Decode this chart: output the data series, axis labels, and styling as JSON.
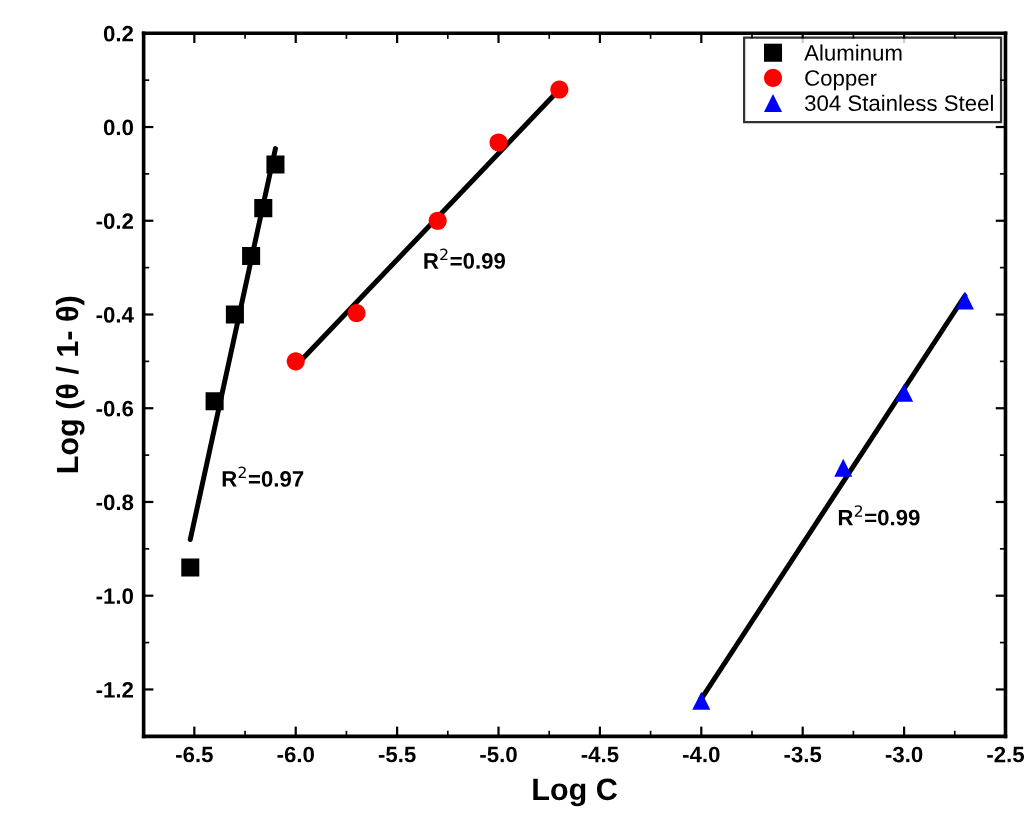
{
  "chart_data": {
    "type": "scatter",
    "xlabel": "Log C",
    "ylabel": "Log (θ / 1- θ)",
    "xlim": [
      -6.75,
      -2.5
    ],
    "ylim": [
      -1.3,
      0.2
    ],
    "xticks": [
      -6.5,
      {
        "value": -6,
        "label": "-6.0"
      },
      -5.5,
      {
        "value": -5,
        "label": "-5.0"
      },
      -4.5,
      {
        "value": -4,
        "label": "-4.0"
      },
      -3.5,
      {
        "value": -3,
        "label": "-3.0"
      },
      -2.5
    ],
    "yticks": [
      -1.2,
      {
        "value": -1,
        "label": "-1.0"
      },
      -0.8,
      -0.6,
      -0.4,
      -0.2,
      {
        "value": 0,
        "label": "0.0"
      },
      0.2
    ],
    "legend": "top right",
    "grid": false,
    "series": [
      {
        "name": "Aluminum",
        "color": "#000000",
        "marker": "square",
        "x": [
          -6.52,
          -6.4,
          -6.3,
          -6.22,
          -6.16,
          -6.1
        ],
        "values": [
          -0.94,
          -0.585,
          -0.4,
          -0.275,
          -0.173,
          -0.08
        ]
      },
      {
        "name": "Copper",
        "color": "#ff0000",
        "marker": "circle",
        "x": [
          -6.0,
          -5.7,
          -5.3,
          -5.0,
          -4.7
        ],
        "values": [
          -0.5,
          -0.397,
          -0.2,
          -0.033,
          0.08
        ]
      },
      {
        "name": "304 Stainless Steel",
        "color": "#0000ff",
        "marker": "triangle",
        "x": [
          -4.0,
          -3.3,
          -3.0,
          -2.7
        ],
        "values": [
          -1.224,
          -0.727,
          -0.567,
          -0.37
        ]
      },
      {
        "type": "line",
        "color": "#000000",
        "marker": "none",
        "x": [
          -6.52,
          -6.1
        ],
        "values": [
          -0.88,
          -0.046
        ]
      },
      {
        "type": "line",
        "color": "#000000",
        "marker": "none",
        "x": [
          -6.0,
          -4.7
        ],
        "values": [
          -0.51,
          0.08
        ]
      },
      {
        "type": "line",
        "color": "#000000",
        "marker": "none",
        "x": [
          -4.0,
          -2.7
        ],
        "values": [
          -1.22,
          -0.36
        ]
      }
    ],
    "annotations": [
      "R$^{2}$=0.97",
      "R$^{2}$=0.99",
      "R$^{2}$=0.99"
    ]
  }
}
